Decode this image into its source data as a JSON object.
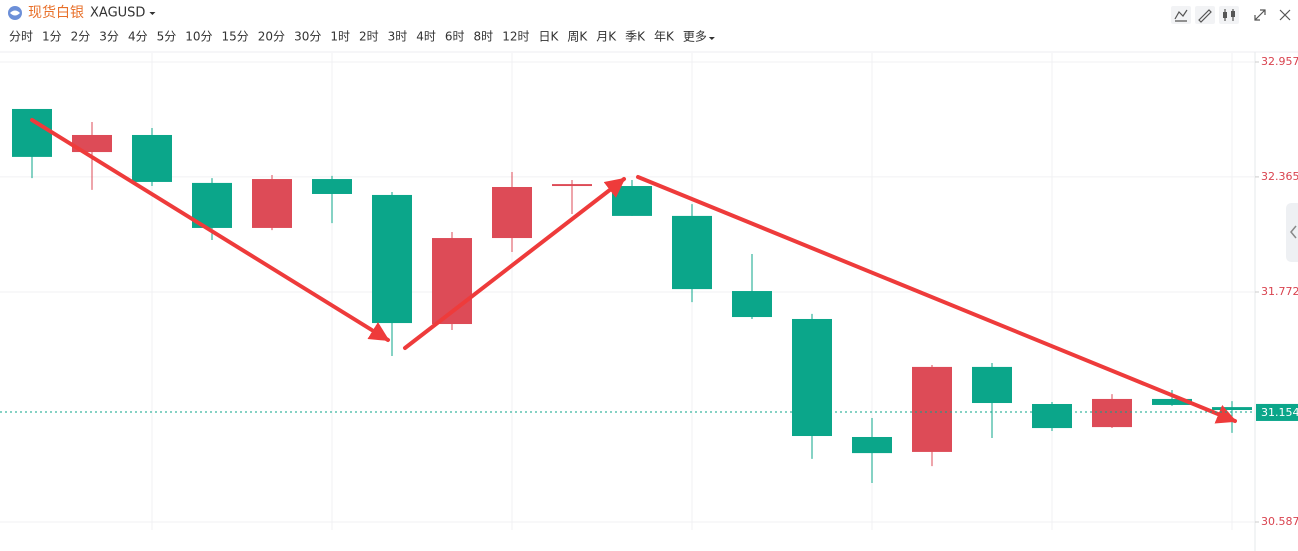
{
  "header": {
    "title": "现货白银",
    "symbol": "XAGUSD"
  },
  "timeframes": [
    "分时",
    "1分",
    "2分",
    "3分",
    "4分",
    "5分",
    "10分",
    "15分",
    "20分",
    "30分",
    "1时",
    "2时",
    "3时",
    "4时",
    "6时",
    "8时",
    "12时",
    "日K",
    "周K",
    "月K",
    "季K",
    "年K",
    "更多"
  ],
  "active_timeframe": "1时",
  "chart_data": {
    "type": "candlestick",
    "series": {
      "open": [
        32.715,
        32.493,
        32.581,
        32.334,
        32.102,
        32.354,
        32.272,
        31.607,
        32.05,
        32.318,
        32.318,
        32.164,
        31.777,
        31.633,
        31.025,
        30.948,
        31.386,
        31.195,
        31.076,
        31.221,
        31.179
      ],
      "high": [
        32.715,
        32.648,
        32.617,
        32.359,
        32.375,
        32.37,
        32.287,
        32.081,
        32.39,
        32.349,
        32.349,
        32.225,
        31.968,
        31.659,
        31.123,
        31.396,
        31.406,
        31.205,
        31.246,
        31.267,
        31.21
      ],
      "low": [
        32.359,
        32.298,
        32.318,
        32.04,
        32.091,
        32.127,
        31.442,
        31.576,
        31.978,
        32.174,
        32.164,
        31.72,
        31.633,
        30.912,
        30.788,
        30.875,
        31.02,
        31.056,
        31.071,
        31.185,
        31.046
      ],
      "close": [
        32.468,
        32.581,
        32.339,
        32.102,
        32.354,
        32.277,
        31.612,
        32.05,
        32.313,
        32.328,
        32.164,
        31.787,
        31.643,
        31.03,
        30.942,
        31.386,
        31.2,
        31.071,
        31.221,
        31.19,
        31.164
      ]
    },
    "up_color": "#dd4b57",
    "down_color": "#0ba68a",
    "ylim": [
      30.587,
      32.957
    ],
    "yticks": [
      30.587,
      31.772,
      32.365,
      32.957
    ],
    "tick_color": "#d9434f",
    "last_price": 31.154,
    "last_price_color": "#0ba68a",
    "grid": true
  }
}
